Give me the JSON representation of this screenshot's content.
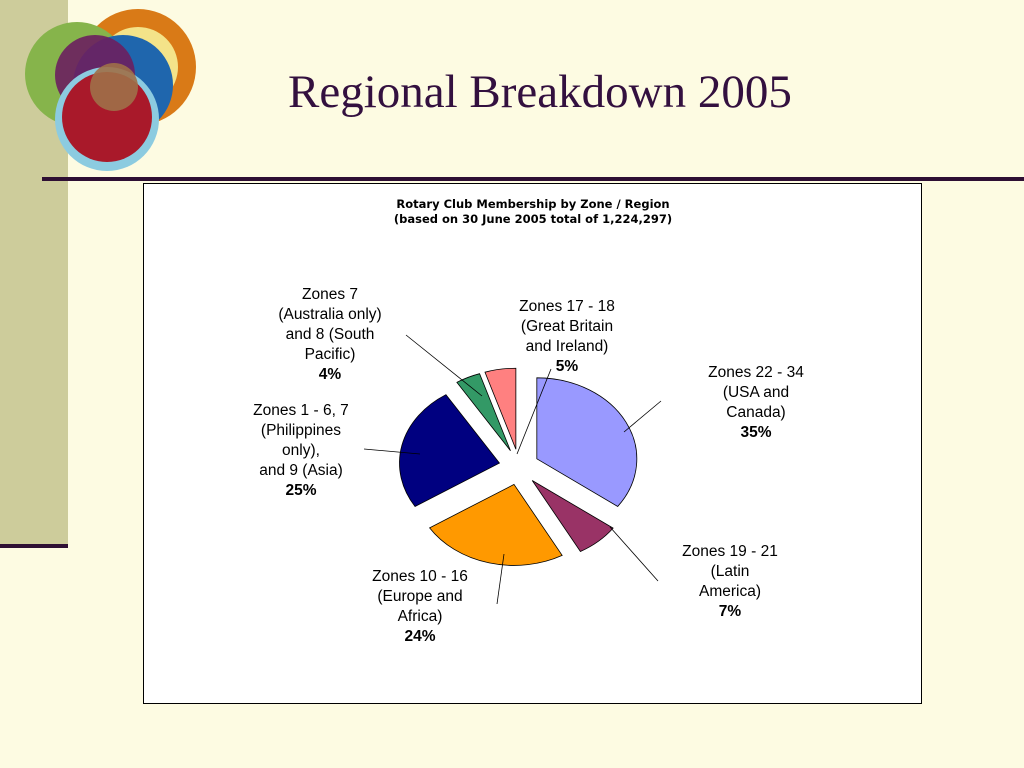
{
  "slide": {
    "title": "Regional Breakdown 2005"
  },
  "colors": {
    "background": "#fdfbe2",
    "side_band": "#cdcc9b",
    "rule": "#2e0f33",
    "title_text": "#33103f"
  },
  "chart_data": {
    "type": "pie",
    "title": "Rotary Club Membership by Zone / Region",
    "subtitle": "(based on 30 June 2005 total of 1,224,297)",
    "exploded": true,
    "slices": [
      {
        "name_lines": [
          "Zones 22 - 34",
          "(USA and",
          "Canada)"
        ],
        "percent_label": "35%",
        "value": 35,
        "color": "#9999ff"
      },
      {
        "name_lines": [
          "Zones 19 - 21",
          "(Latin",
          "America)"
        ],
        "percent_label": "7%",
        "value": 7,
        "color": "#993366"
      },
      {
        "name_lines": [
          "Zones 10 - 16",
          "(Europe and",
          "Africa)"
        ],
        "percent_label": "24%",
        "value": 24,
        "color": "#ff9900"
      },
      {
        "name_lines": [
          "Zones 1 - 6, 7",
          "(Philippines",
          "only),",
          "and 9 (Asia)"
        ],
        "percent_label": "25%",
        "value": 25,
        "color": "#000080"
      },
      {
        "name_lines": [
          "Zones 7",
          "(Australia only)",
          "and 8 (South",
          "Pacific)"
        ],
        "percent_label": "4%",
        "value": 4,
        "color": "#339966"
      },
      {
        "name_lines": [
          "Zones 17 - 18",
          "(Great Britain",
          "and Ireland)"
        ],
        "percent_label": "5%",
        "value": 5,
        "color": "#ff8080"
      }
    ]
  }
}
